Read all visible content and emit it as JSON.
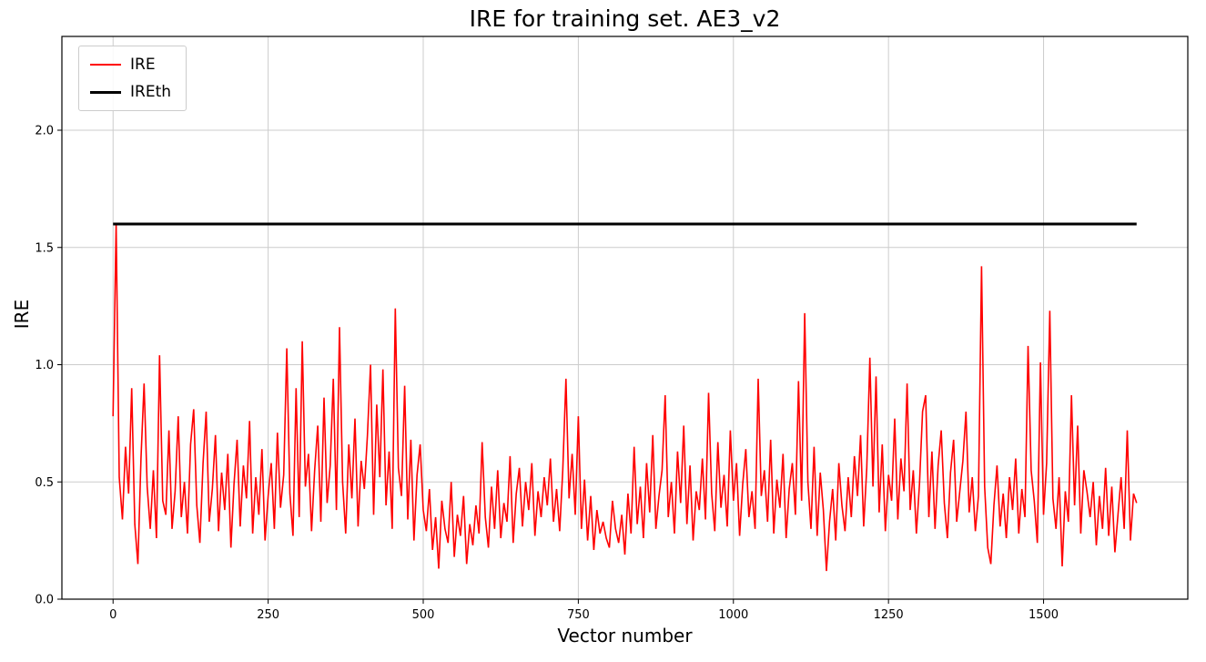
{
  "chart_data": {
    "type": "line",
    "title": "IRE for training set. AE3_v2",
    "xlabel": "Vector number",
    "ylabel": "IRE",
    "xlim": [
      -82.5,
      1732.5
    ],
    "ylim": [
      0,
      2.4
    ],
    "x_ticks": [
      0,
      250,
      500,
      750,
      1000,
      1250,
      1500
    ],
    "x_tick_labels": [
      "0",
      "250",
      "500",
      "750",
      "1000",
      "1250",
      "1500"
    ],
    "y_ticks": [
      0.0,
      0.5,
      1.0,
      1.5,
      2.0
    ],
    "y_tick_labels": [
      "0.0",
      "0.5",
      "1.0",
      "1.5",
      "2.0"
    ],
    "grid": true,
    "legend_position": "upper-left",
    "colors": {
      "grid": "#cccccc",
      "spine": "#000000",
      "background": "#ffffff"
    },
    "series": [
      {
        "name": "IRE",
        "color": "#ff0000",
        "x_start": 0,
        "x_step": 5,
        "values": [
          0.78,
          1.6,
          0.52,
          0.34,
          0.65,
          0.45,
          0.9,
          0.32,
          0.15,
          0.6,
          0.92,
          0.48,
          0.3,
          0.55,
          0.26,
          1.04,
          0.42,
          0.36,
          0.72,
          0.3,
          0.46,
          0.78,
          0.35,
          0.5,
          0.28,
          0.66,
          0.81,
          0.4,
          0.24,
          0.58,
          0.8,
          0.33,
          0.47,
          0.7,
          0.29,
          0.54,
          0.38,
          0.62,
          0.22,
          0.49,
          0.68,
          0.31,
          0.57,
          0.43,
          0.76,
          0.28,
          0.52,
          0.36,
          0.64,
          0.25,
          0.44,
          0.58,
          0.3,
          0.71,
          0.39,
          0.53,
          1.07,
          0.45,
          0.27,
          0.9,
          0.35,
          1.1,
          0.48,
          0.62,
          0.29,
          0.55,
          0.74,
          0.33,
          0.86,
          0.41,
          0.57,
          0.94,
          0.38,
          1.16,
          0.5,
          0.28,
          0.66,
          0.43,
          0.77,
          0.31,
          0.59,
          0.47,
          0.7,
          1.0,
          0.36,
          0.83,
          0.52,
          0.98,
          0.4,
          0.63,
          0.3,
          1.24,
          0.56,
          0.44,
          0.91,
          0.34,
          0.68,
          0.25,
          0.53,
          0.66,
          0.38,
          0.29,
          0.47,
          0.21,
          0.35,
          0.13,
          0.42,
          0.3,
          0.24,
          0.5,
          0.18,
          0.36,
          0.27,
          0.44,
          0.15,
          0.32,
          0.23,
          0.4,
          0.28,
          0.67,
          0.35,
          0.22,
          0.48,
          0.3,
          0.55,
          0.26,
          0.41,
          0.33,
          0.61,
          0.24,
          0.45,
          0.56,
          0.31,
          0.5,
          0.38,
          0.58,
          0.27,
          0.46,
          0.35,
          0.52,
          0.4,
          0.6,
          0.33,
          0.47,
          0.29,
          0.55,
          0.94,
          0.43,
          0.62,
          0.36,
          0.78,
          0.3,
          0.51,
          0.25,
          0.44,
          0.21,
          0.38,
          0.28,
          0.33,
          0.26,
          0.22,
          0.42,
          0.3,
          0.24,
          0.36,
          0.19,
          0.45,
          0.28,
          0.65,
          0.32,
          0.48,
          0.26,
          0.58,
          0.37,
          0.7,
          0.3,
          0.44,
          0.55,
          0.87,
          0.35,
          0.5,
          0.28,
          0.63,
          0.41,
          0.74,
          0.32,
          0.57,
          0.25,
          0.46,
          0.38,
          0.6,
          0.34,
          0.88,
          0.45,
          0.29,
          0.67,
          0.39,
          0.53,
          0.31,
          0.72,
          0.42,
          0.58,
          0.27,
          0.49,
          0.64,
          0.35,
          0.46,
          0.3,
          0.94,
          0.44,
          0.55,
          0.33,
          0.68,
          0.28,
          0.51,
          0.39,
          0.62,
          0.26,
          0.47,
          0.58,
          0.36,
          0.93,
          0.42,
          1.22,
          0.5,
          0.3,
          0.65,
          0.27,
          0.54,
          0.38,
          0.12,
          0.33,
          0.47,
          0.25,
          0.58,
          0.4,
          0.29,
          0.52,
          0.35,
          0.61,
          0.44,
          0.7,
          0.31,
          0.56,
          1.03,
          0.48,
          0.95,
          0.37,
          0.66,
          0.29,
          0.53,
          0.42,
          0.77,
          0.34,
          0.6,
          0.46,
          0.92,
          0.38,
          0.55,
          0.28,
          0.49,
          0.8,
          0.87,
          0.35,
          0.63,
          0.3,
          0.57,
          0.72,
          0.41,
          0.26,
          0.54,
          0.68,
          0.33,
          0.46,
          0.59,
          0.8,
          0.37,
          0.52,
          0.29,
          0.44,
          1.42,
          0.48,
          0.22,
          0.15,
          0.4,
          0.57,
          0.31,
          0.45,
          0.26,
          0.52,
          0.38,
          0.6,
          0.28,
          0.47,
          0.35,
          1.08,
          0.55,
          0.42,
          0.24,
          1.01,
          0.36,
          0.58,
          1.23,
          0.43,
          0.3,
          0.52,
          0.14,
          0.46,
          0.33,
          0.87,
          0.4,
          0.74,
          0.28,
          0.55,
          0.46,
          0.35,
          0.5,
          0.23,
          0.44,
          0.3,
          0.56,
          0.27,
          0.48,
          0.2,
          0.36,
          0.52,
          0.3,
          0.72,
          0.25,
          0.45,
          0.41
        ]
      },
      {
        "name": "IREth",
        "color": "#000000",
        "type": "hline",
        "y": 1.6,
        "x_range": [
          0,
          1650
        ]
      }
    ]
  }
}
